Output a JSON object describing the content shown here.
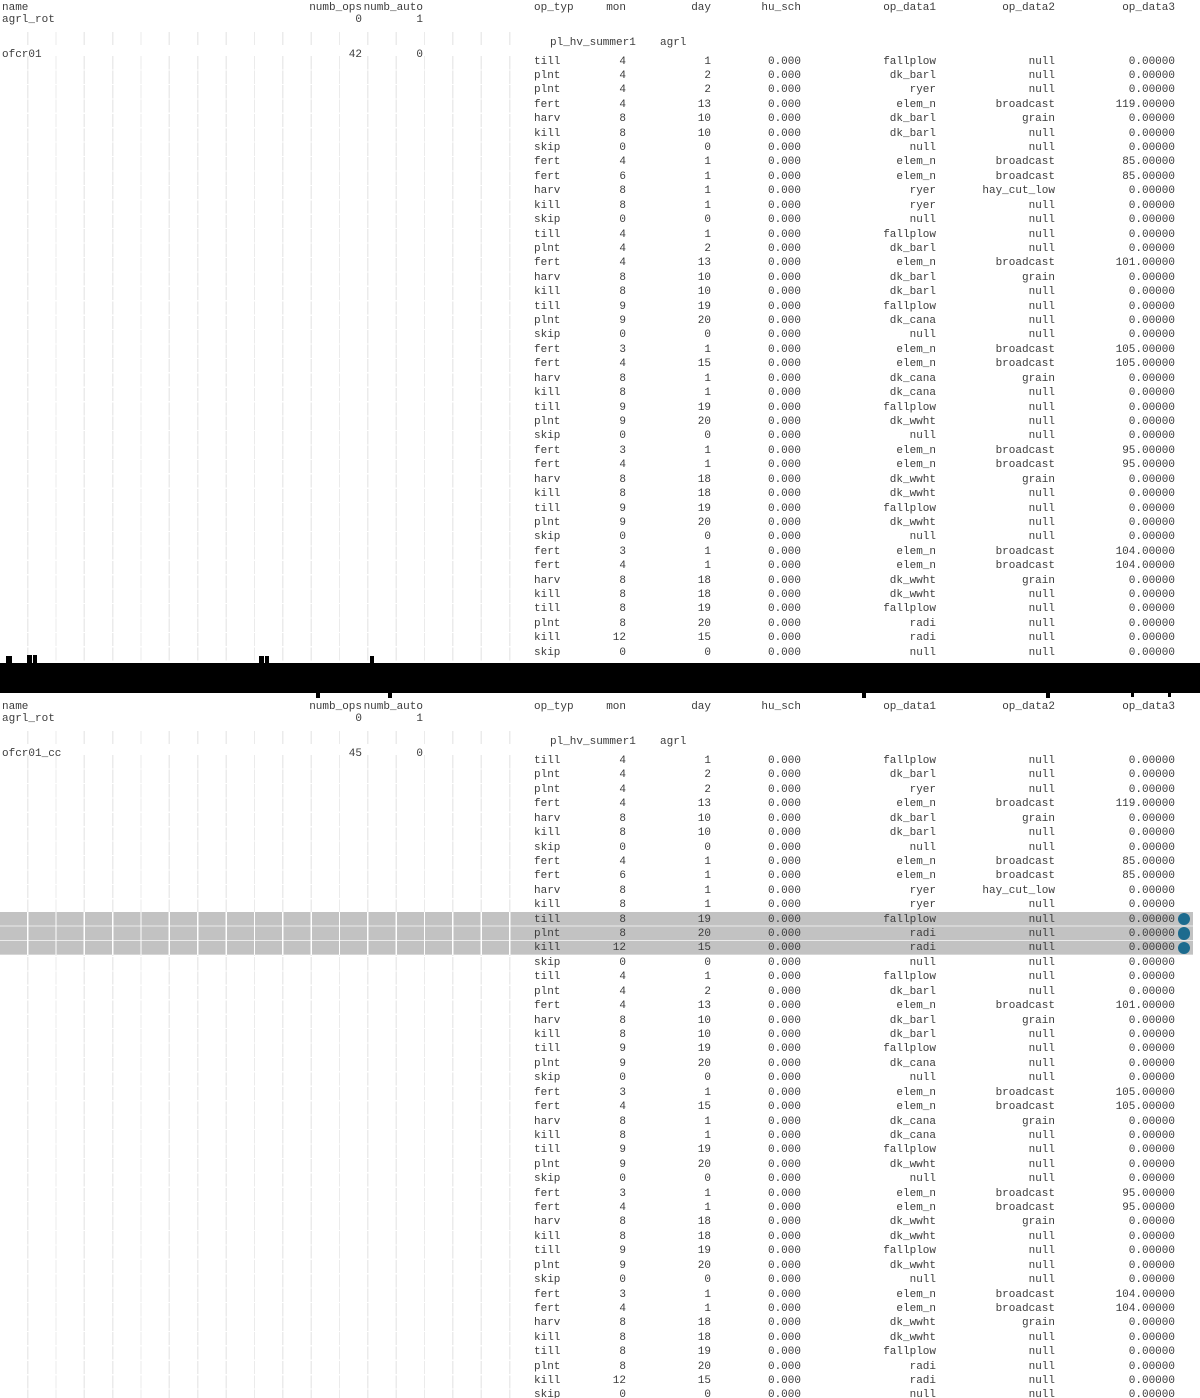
{
  "columns": {
    "name": "name",
    "numb_ops": "numb_ops",
    "numb_auto": "numb_auto",
    "op_typ": "op_typ",
    "mon": "mon",
    "day": "day",
    "hu_sch": "hu_sch",
    "op_data1": "op_data1",
    "op_data2": "op_data2",
    "op_data3": "op_data3"
  },
  "panels": [
    {
      "rotation_name": "agrl_rot",
      "rotation_numb_ops": "0",
      "rotation_numb_auto": "1",
      "schedule": "pl_hv_summer1",
      "crop": "agrl",
      "group_name": "ofcr01",
      "group_numb_ops": "42",
      "group_numb_auto": "0",
      "highlight_rows": [],
      "rows": [
        [
          "till",
          "4",
          "1",
          "0.000",
          "fallplow",
          "null",
          "0.00000"
        ],
        [
          "plnt",
          "4",
          "2",
          "0.000",
          "dk_barl",
          "null",
          "0.00000"
        ],
        [
          "plnt",
          "4",
          "2",
          "0.000",
          "ryer",
          "null",
          "0.00000"
        ],
        [
          "fert",
          "4",
          "13",
          "0.000",
          "elem_n",
          "broadcast",
          "119.00000"
        ],
        [
          "harv",
          "8",
          "10",
          "0.000",
          "dk_barl",
          "grain",
          "0.00000"
        ],
        [
          "kill",
          "8",
          "10",
          "0.000",
          "dk_barl",
          "null",
          "0.00000"
        ],
        [
          "skip",
          "0",
          "0",
          "0.000",
          "null",
          "null",
          "0.00000"
        ],
        [
          "fert",
          "4",
          "1",
          "0.000",
          "elem_n",
          "broadcast",
          "85.00000"
        ],
        [
          "fert",
          "6",
          "1",
          "0.000",
          "elem_n",
          "broadcast",
          "85.00000"
        ],
        [
          "harv",
          "8",
          "1",
          "0.000",
          "ryer",
          "hay_cut_low",
          "0.00000"
        ],
        [
          "kill",
          "8",
          "1",
          "0.000",
          "ryer",
          "null",
          "0.00000"
        ],
        [
          "skip",
          "0",
          "0",
          "0.000",
          "null",
          "null",
          "0.00000"
        ],
        [
          "till",
          "4",
          "1",
          "0.000",
          "fallplow",
          "null",
          "0.00000"
        ],
        [
          "plnt",
          "4",
          "2",
          "0.000",
          "dk_barl",
          "null",
          "0.00000"
        ],
        [
          "fert",
          "4",
          "13",
          "0.000",
          "elem_n",
          "broadcast",
          "101.00000"
        ],
        [
          "harv",
          "8",
          "10",
          "0.000",
          "dk_barl",
          "grain",
          "0.00000"
        ],
        [
          "kill",
          "8",
          "10",
          "0.000",
          "dk_barl",
          "null",
          "0.00000"
        ],
        [
          "till",
          "9",
          "19",
          "0.000",
          "fallplow",
          "null",
          "0.00000"
        ],
        [
          "plnt",
          "9",
          "20",
          "0.000",
          "dk_cana",
          "null",
          "0.00000"
        ],
        [
          "skip",
          "0",
          "0",
          "0.000",
          "null",
          "null",
          "0.00000"
        ],
        [
          "fert",
          "3",
          "1",
          "0.000",
          "elem_n",
          "broadcast",
          "105.00000"
        ],
        [
          "fert",
          "4",
          "15",
          "0.000",
          "elem_n",
          "broadcast",
          "105.00000"
        ],
        [
          "harv",
          "8",
          "1",
          "0.000",
          "dk_cana",
          "grain",
          "0.00000"
        ],
        [
          "kill",
          "8",
          "1",
          "0.000",
          "dk_cana",
          "null",
          "0.00000"
        ],
        [
          "till",
          "9",
          "19",
          "0.000",
          "fallplow",
          "null",
          "0.00000"
        ],
        [
          "plnt",
          "9",
          "20",
          "0.000",
          "dk_wwht",
          "null",
          "0.00000"
        ],
        [
          "skip",
          "0",
          "0",
          "0.000",
          "null",
          "null",
          "0.00000"
        ],
        [
          "fert",
          "3",
          "1",
          "0.000",
          "elem_n",
          "broadcast",
          "95.00000"
        ],
        [
          "fert",
          "4",
          "1",
          "0.000",
          "elem_n",
          "broadcast",
          "95.00000"
        ],
        [
          "harv",
          "8",
          "18",
          "0.000",
          "dk_wwht",
          "grain",
          "0.00000"
        ],
        [
          "kill",
          "8",
          "18",
          "0.000",
          "dk_wwht",
          "null",
          "0.00000"
        ],
        [
          "till",
          "9",
          "19",
          "0.000",
          "fallplow",
          "null",
          "0.00000"
        ],
        [
          "plnt",
          "9",
          "20",
          "0.000",
          "dk_wwht",
          "null",
          "0.00000"
        ],
        [
          "skip",
          "0",
          "0",
          "0.000",
          "null",
          "null",
          "0.00000"
        ],
        [
          "fert",
          "3",
          "1",
          "0.000",
          "elem_n",
          "broadcast",
          "104.00000"
        ],
        [
          "fert",
          "4",
          "1",
          "0.000",
          "elem_n",
          "broadcast",
          "104.00000"
        ],
        [
          "harv",
          "8",
          "18",
          "0.000",
          "dk_wwht",
          "grain",
          "0.00000"
        ],
        [
          "kill",
          "8",
          "18",
          "0.000",
          "dk_wwht",
          "null",
          "0.00000"
        ],
        [
          "till",
          "8",
          "19",
          "0.000",
          "fallplow",
          "null",
          "0.00000"
        ],
        [
          "plnt",
          "8",
          "20",
          "0.000",
          "radi",
          "null",
          "0.00000"
        ],
        [
          "kill",
          "12",
          "15",
          "0.000",
          "radi",
          "null",
          "0.00000"
        ],
        [
          "skip",
          "0",
          "0",
          "0.000",
          "null",
          "null",
          "0.00000"
        ]
      ]
    },
    {
      "rotation_name": "agrl_rot",
      "rotation_numb_ops": "0",
      "rotation_numb_auto": "1",
      "schedule": "pl_hv_summer1",
      "crop": "agrl",
      "group_name": "ofcr01_cc",
      "group_numb_ops": "45",
      "group_numb_auto": "0",
      "highlight_rows": [
        11,
        12,
        13
      ],
      "rows": [
        [
          "till",
          "4",
          "1",
          "0.000",
          "fallplow",
          "null",
          "0.00000"
        ],
        [
          "plnt",
          "4",
          "2",
          "0.000",
          "dk_barl",
          "null",
          "0.00000"
        ],
        [
          "plnt",
          "4",
          "2",
          "0.000",
          "ryer",
          "null",
          "0.00000"
        ],
        [
          "fert",
          "4",
          "13",
          "0.000",
          "elem_n",
          "broadcast",
          "119.00000"
        ],
        [
          "harv",
          "8",
          "10",
          "0.000",
          "dk_barl",
          "grain",
          "0.00000"
        ],
        [
          "kill",
          "8",
          "10",
          "0.000",
          "dk_barl",
          "null",
          "0.00000"
        ],
        [
          "skip",
          "0",
          "0",
          "0.000",
          "null",
          "null",
          "0.00000"
        ],
        [
          "fert",
          "4",
          "1",
          "0.000",
          "elem_n",
          "broadcast",
          "85.00000"
        ],
        [
          "fert",
          "6",
          "1",
          "0.000",
          "elem_n",
          "broadcast",
          "85.00000"
        ],
        [
          "harv",
          "8",
          "1",
          "0.000",
          "ryer",
          "hay_cut_low",
          "0.00000"
        ],
        [
          "kill",
          "8",
          "1",
          "0.000",
          "ryer",
          "null",
          "0.00000"
        ],
        [
          "till",
          "8",
          "19",
          "0.000",
          "fallplow",
          "null",
          "0.00000"
        ],
        [
          "plnt",
          "8",
          "20",
          "0.000",
          "radi",
          "null",
          "0.00000"
        ],
        [
          "kill",
          "12",
          "15",
          "0.000",
          "radi",
          "null",
          "0.00000"
        ],
        [
          "skip",
          "0",
          "0",
          "0.000",
          "null",
          "null",
          "0.00000"
        ],
        [
          "till",
          "4",
          "1",
          "0.000",
          "fallplow",
          "null",
          "0.00000"
        ],
        [
          "plnt",
          "4",
          "2",
          "0.000",
          "dk_barl",
          "null",
          "0.00000"
        ],
        [
          "fert",
          "4",
          "13",
          "0.000",
          "elem_n",
          "broadcast",
          "101.00000"
        ],
        [
          "harv",
          "8",
          "10",
          "0.000",
          "dk_barl",
          "grain",
          "0.00000"
        ],
        [
          "kill",
          "8",
          "10",
          "0.000",
          "dk_barl",
          "null",
          "0.00000"
        ],
        [
          "till",
          "9",
          "19",
          "0.000",
          "fallplow",
          "null",
          "0.00000"
        ],
        [
          "plnt",
          "9",
          "20",
          "0.000",
          "dk_cana",
          "null",
          "0.00000"
        ],
        [
          "skip",
          "0",
          "0",
          "0.000",
          "null",
          "null",
          "0.00000"
        ],
        [
          "fert",
          "3",
          "1",
          "0.000",
          "elem_n",
          "broadcast",
          "105.00000"
        ],
        [
          "fert",
          "4",
          "15",
          "0.000",
          "elem_n",
          "broadcast",
          "105.00000"
        ],
        [
          "harv",
          "8",
          "1",
          "0.000",
          "dk_cana",
          "grain",
          "0.00000"
        ],
        [
          "kill",
          "8",
          "1",
          "0.000",
          "dk_cana",
          "null",
          "0.00000"
        ],
        [
          "till",
          "9",
          "19",
          "0.000",
          "fallplow",
          "null",
          "0.00000"
        ],
        [
          "plnt",
          "9",
          "20",
          "0.000",
          "dk_wwht",
          "null",
          "0.00000"
        ],
        [
          "skip",
          "0",
          "0",
          "0.000",
          "null",
          "null",
          "0.00000"
        ],
        [
          "fert",
          "3",
          "1",
          "0.000",
          "elem_n",
          "broadcast",
          "95.00000"
        ],
        [
          "fert",
          "4",
          "1",
          "0.000",
          "elem_n",
          "broadcast",
          "95.00000"
        ],
        [
          "harv",
          "8",
          "18",
          "0.000",
          "dk_wwht",
          "grain",
          "0.00000"
        ],
        [
          "kill",
          "8",
          "18",
          "0.000",
          "dk_wwht",
          "null",
          "0.00000"
        ],
        [
          "till",
          "9",
          "19",
          "0.000",
          "fallplow",
          "null",
          "0.00000"
        ],
        [
          "plnt",
          "9",
          "20",
          "0.000",
          "dk_wwht",
          "null",
          "0.00000"
        ],
        [
          "skip",
          "0",
          "0",
          "0.000",
          "null",
          "null",
          "0.00000"
        ],
        [
          "fert",
          "3",
          "1",
          "0.000",
          "elem_n",
          "broadcast",
          "104.00000"
        ],
        [
          "fert",
          "4",
          "1",
          "0.000",
          "elem_n",
          "broadcast",
          "104.00000"
        ],
        [
          "harv",
          "8",
          "18",
          "0.000",
          "dk_wwht",
          "grain",
          "0.00000"
        ],
        [
          "kill",
          "8",
          "18",
          "0.000",
          "dk_wwht",
          "null",
          "0.00000"
        ],
        [
          "till",
          "8",
          "19",
          "0.000",
          "fallplow",
          "null",
          "0.00000"
        ],
        [
          "plnt",
          "8",
          "20",
          "0.000",
          "radi",
          "null",
          "0.00000"
        ],
        [
          "kill",
          "12",
          "15",
          "0.000",
          "radi",
          "null",
          "0.00000"
        ],
        [
          "skip",
          "0",
          "0",
          "0.000",
          "null",
          "null",
          "0.00000"
        ]
      ]
    }
  ],
  "colors": {
    "highlight": "#c2c2c2",
    "diff_marker": "#1d6b8e",
    "grid_line": "#ebebeb",
    "redaction": "#000000",
    "text": "#3c3c3c"
  }
}
